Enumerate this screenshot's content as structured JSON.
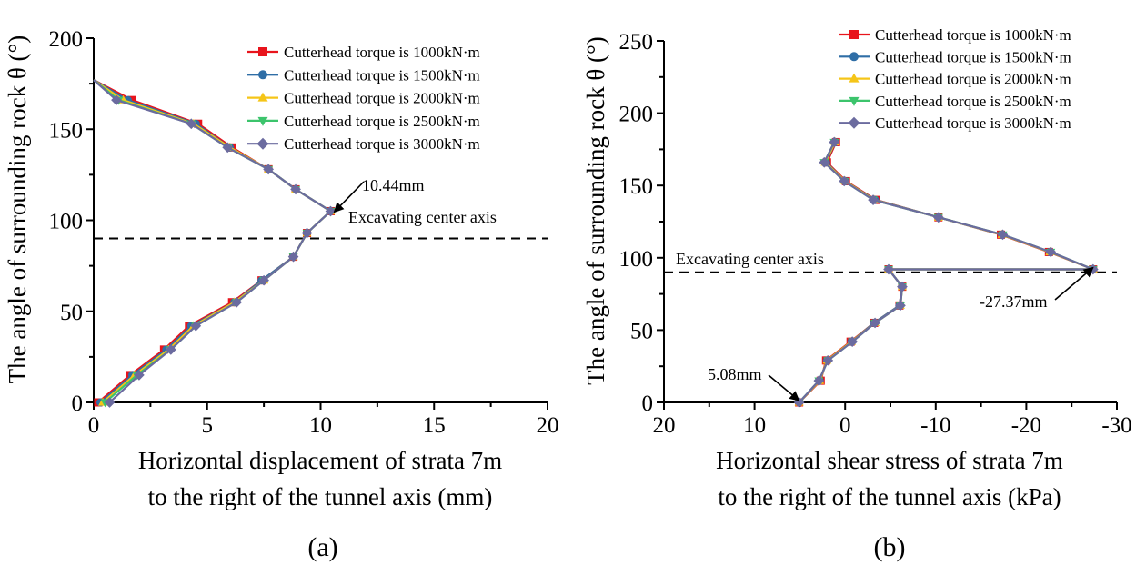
{
  "chart_data": [
    {
      "type": "line",
      "caption": "(a)",
      "xlabel": [
        "Horizontal displacement of strata 7m",
        "to the right of the tunnel axis (mm)"
      ],
      "ylabel": "The angle of surrounding rock θ (°)",
      "xlim": [
        0,
        20
      ],
      "ylim": [
        0,
        200
      ],
      "xticks": [
        0,
        5,
        10,
        15,
        20
      ],
      "yticks": [
        0,
        50,
        100,
        150,
        200
      ],
      "x_reversed": false,
      "grid": false,
      "legend_position": "top-right",
      "angles": [
        0,
        15,
        29,
        42,
        55,
        67,
        80,
        93,
        105,
        117,
        128,
        140,
        153,
        166,
        177
      ],
      "series": [
        {
          "name": "Cutterhead torque is 1000kN·m",
          "color": "#e8141c",
          "marker": "square",
          "values": [
            0.2,
            1.6,
            3.1,
            4.2,
            6.1,
            7.4,
            8.8,
            9.4,
            10.44,
            8.9,
            7.7,
            6.1,
            4.6,
            1.7,
            0.0
          ]
        },
        {
          "name": "Cutterhead torque is 1500kN·m",
          "color": "#2f6ea6",
          "marker": "circle",
          "values": [
            0.3,
            1.7,
            3.2,
            4.3,
            6.2,
            7.4,
            8.8,
            9.4,
            10.44,
            8.9,
            7.7,
            6.0,
            4.5,
            1.5,
            0.0
          ]
        },
        {
          "name": "Cutterhead torque is 2000kN·m",
          "color": "#f5c518",
          "marker": "triangle-up",
          "values": [
            0.4,
            1.8,
            3.3,
            4.4,
            6.2,
            7.5,
            8.8,
            9.4,
            10.44,
            8.9,
            7.7,
            6.0,
            4.4,
            1.3,
            0.0
          ]
        },
        {
          "name": "Cutterhead torque is 2500kN·m",
          "color": "#3cc46c",
          "marker": "triangle-down",
          "values": [
            0.5,
            1.9,
            3.4,
            4.5,
            6.3,
            7.5,
            8.8,
            9.4,
            10.44,
            8.9,
            7.7,
            5.9,
            4.3,
            1.1,
            0.0
          ]
        },
        {
          "name": "Cutterhead torque is 3000kN·m",
          "color": "#6b6b9f",
          "marker": "diamond",
          "values": [
            0.7,
            2.0,
            3.4,
            4.5,
            6.3,
            7.5,
            8.8,
            9.4,
            10.44,
            8.9,
            7.7,
            5.9,
            4.3,
            1.0,
            0.0
          ]
        }
      ],
      "annotations": [
        {
          "text": "10.44mm",
          "x": 10.44,
          "y": 105
        },
        {
          "text": "Excavating center axis",
          "y": 90
        }
      ]
    },
    {
      "type": "line",
      "caption": "(b)",
      "xlabel": [
        "Horizontal shear stress of strata 7m",
        "to the right of the tunnel axis (kPa)"
      ],
      "ylabel": "The angle of surrounding rock θ (°)",
      "xlim": [
        20,
        -30
      ],
      "ylim": [
        0,
        250
      ],
      "xticks": [
        20,
        10,
        0,
        -10,
        -20,
        -30
      ],
      "yticks": [
        0,
        50,
        100,
        150,
        200,
        250
      ],
      "x_reversed": true,
      "grid": false,
      "legend_position": "top-right",
      "angles": [
        0,
        15,
        29,
        42,
        55,
        67,
        80,
        92,
        92,
        104,
        116,
        128,
        140,
        153,
        166,
        180
      ],
      "series": [
        {
          "name": "Cutterhead torque is 1000kN·m",
          "color": "#e8141c",
          "marker": "square",
          "values": [
            5.08,
            2.7,
            2.1,
            -0.6,
            -3.2,
            -6.0,
            -6.3,
            -4.8,
            -27.37,
            -22.5,
            -17.2,
            -10.3,
            -3.4,
            -0.1,
            2.0,
            1.0
          ]
        },
        {
          "name": "Cutterhead torque is 1500kN·m",
          "color": "#2f6ea6",
          "marker": "circle",
          "values": [
            5.08,
            2.8,
            2.0,
            -0.7,
            -3.2,
            -6.0,
            -6.3,
            -4.8,
            -27.37,
            -22.6,
            -17.3,
            -10.3,
            -3.3,
            0.0,
            2.1,
            1.1
          ]
        },
        {
          "name": "Cutterhead torque is 2000kN·m",
          "color": "#f5c518",
          "marker": "triangle-up",
          "values": [
            5.08,
            2.8,
            2.0,
            -0.7,
            -3.3,
            -6.1,
            -6.3,
            -4.8,
            -27.37,
            -22.6,
            -17.3,
            -10.3,
            -3.2,
            0.0,
            2.2,
            1.1
          ]
        },
        {
          "name": "Cutterhead torque is 2500kN·m",
          "color": "#3cc46c",
          "marker": "triangle-down",
          "values": [
            5.08,
            2.9,
            1.9,
            -0.8,
            -3.3,
            -6.1,
            -6.3,
            -4.8,
            -27.37,
            -22.7,
            -17.4,
            -10.3,
            -3.1,
            0.1,
            2.3,
            1.2
          ]
        },
        {
          "name": "Cutterhead torque is 3000kN·m",
          "color": "#6b6b9f",
          "marker": "diamond",
          "values": [
            5.08,
            2.9,
            1.9,
            -0.8,
            -3.3,
            -6.1,
            -6.3,
            -4.8,
            -27.37,
            -22.7,
            -17.4,
            -10.3,
            -3.1,
            0.1,
            2.3,
            1.2
          ]
        }
      ],
      "annotations": [
        {
          "text": "-27.37mm",
          "x": -27.37,
          "y": 92
        },
        {
          "text": "5.08mm",
          "x": 5.08,
          "y": 0
        },
        {
          "text": "Excavating center axis",
          "y": 90
        }
      ]
    }
  ]
}
